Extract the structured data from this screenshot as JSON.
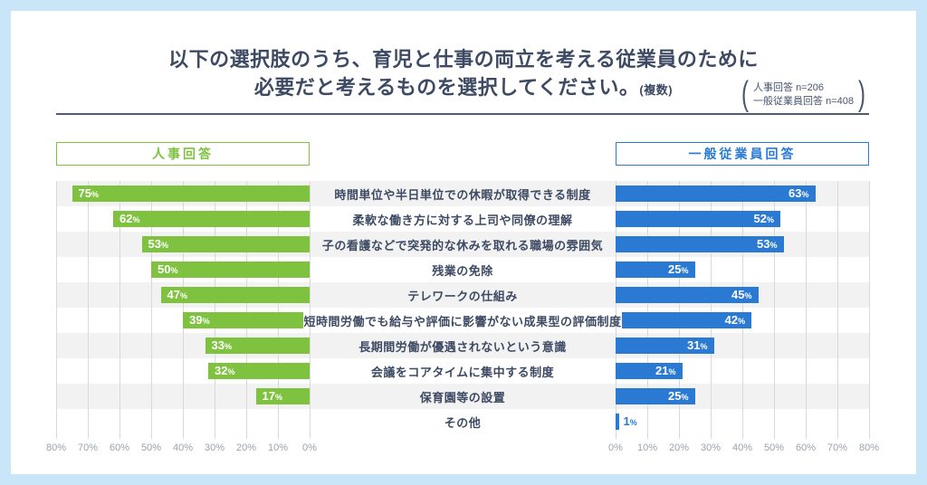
{
  "header": {
    "title_line1": "以下の選択肢のうち、育児と仕事の両立を考える従業員のために",
    "title_line2": "必要だと考えるものを選択してください。",
    "title_suffix": "(複数)",
    "paren_open": "(",
    "paren_close": ")",
    "note_line1": "人事回答 n=206",
    "note_line2": "一般従業員回答 n=408"
  },
  "legend": {
    "left_label": "人事回答",
    "right_label": "一般従業員回答"
  },
  "colors": {
    "page_background": "#c9e5f8",
    "card_background": "#ffffff",
    "green": "#7ec23f",
    "blue": "#2a7ad4",
    "navy_text": "#3d4a63",
    "stripe": "#f2f2f2",
    "gridline": "#d9d9d9",
    "axis_text": "#9aa3ad"
  },
  "chart_data": {
    "type": "bar",
    "variant": "horizontal-butterfly",
    "title": "以下の選択肢のうち、育児と仕事の両立を考える従業員のために必要だと考えるものを選択してください。(複数)",
    "unit": "%",
    "xlim": [
      0,
      80
    ],
    "grid": true,
    "categories": [
      "時間単位や半日単位での休暇が取得できる制度",
      "柔軟な働き方に対する上司や同僚の理解",
      "子の看護などで突発的な休みを取れる職場の雰囲気",
      "残業の免除",
      "テレワークの仕組み",
      "短時間労働でも給与や評価に影響がない成果型の評価制度",
      "長期間労働が優遇されないという意識",
      "会議をコアタイムに集中する制度",
      "保育園等の設置",
      "その他"
    ],
    "series": [
      {
        "name": "人事回答",
        "n": 206,
        "side": "left",
        "color": "#7ec23f",
        "values": [
          75,
          62,
          53,
          50,
          47,
          39,
          33,
          32,
          17,
          null
        ]
      },
      {
        "name": "一般従業員回答",
        "n": 408,
        "side": "right",
        "color": "#2a7ad4",
        "values": [
          63,
          52,
          53,
          25,
          45,
          42,
          31,
          21,
          25,
          1
        ]
      }
    ],
    "axis_ticks_left": [
      "80%",
      "70%",
      "60%",
      "50%",
      "40%",
      "30%",
      "20%",
      "10%",
      "0%"
    ],
    "axis_ticks_right": [
      "0%",
      "10%",
      "20%",
      "30%",
      "40%",
      "50%",
      "60%",
      "70%",
      "80%"
    ]
  }
}
